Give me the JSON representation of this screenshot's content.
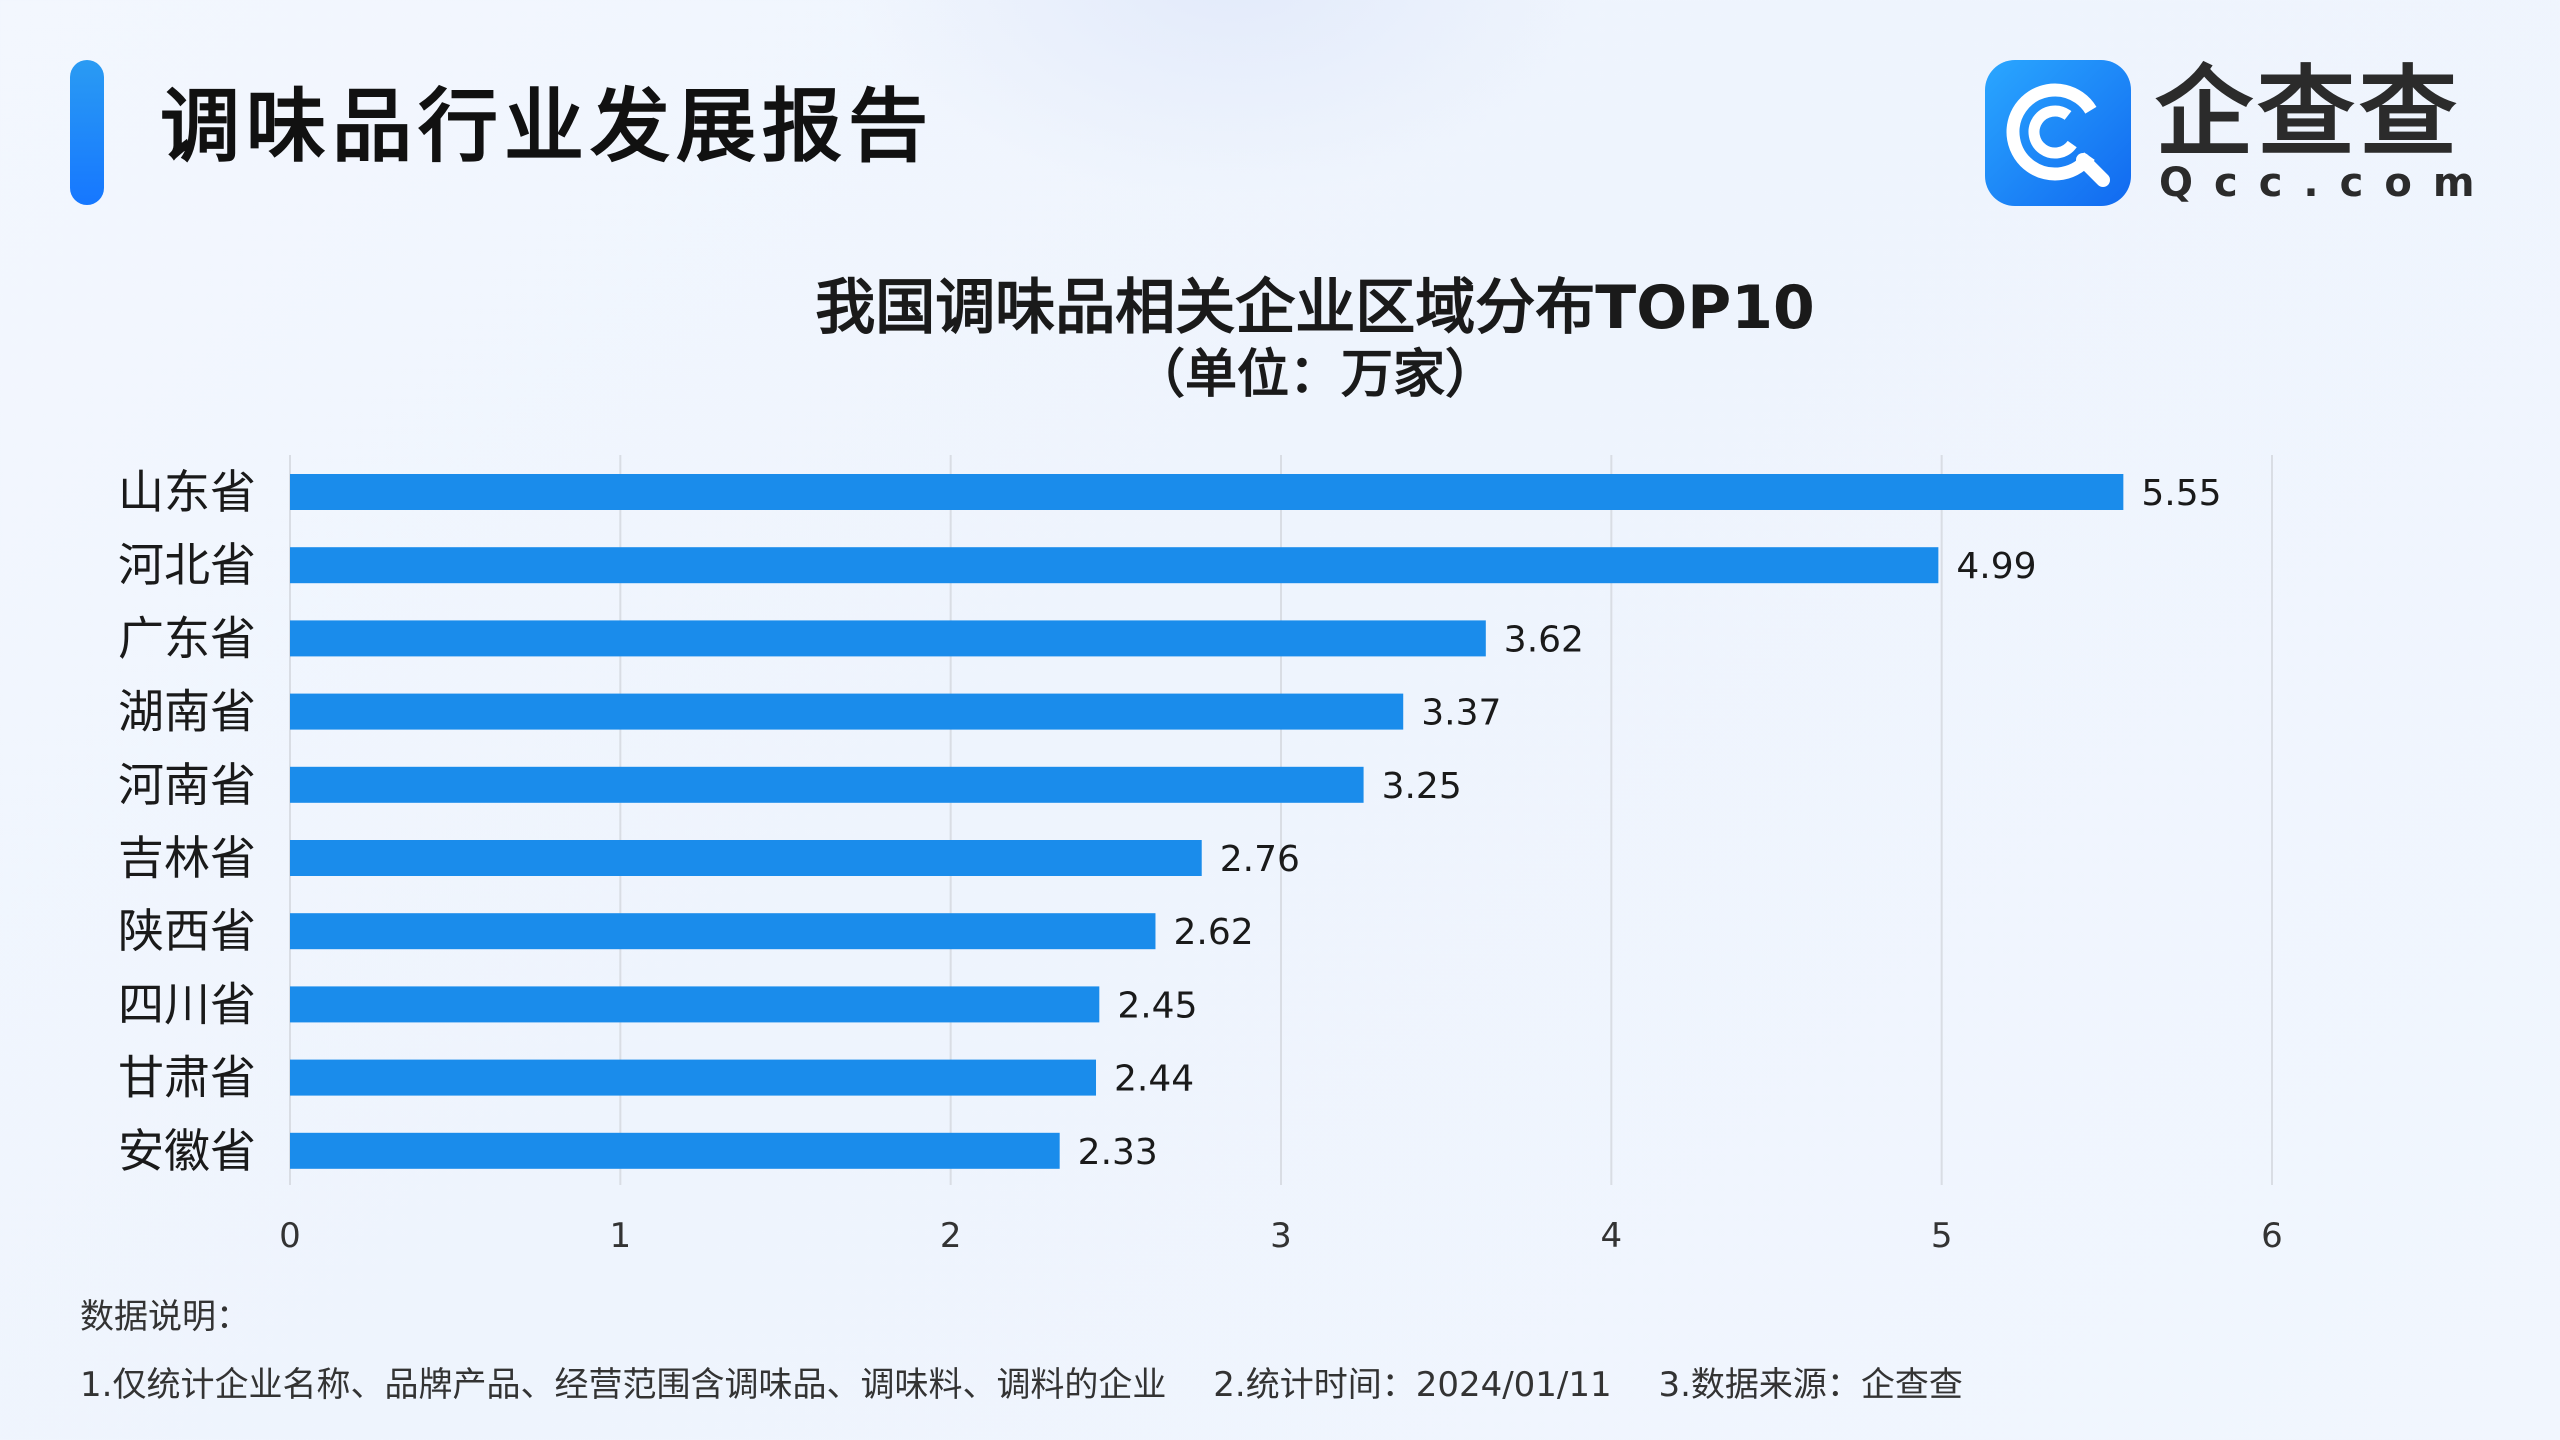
{
  "header": {
    "report_title": "调味品行业发展报告",
    "logo_name": "企查查",
    "logo_domain": "Qcc.com"
  },
  "colors": {
    "bar": "#1a8ceb",
    "grid": "#d9dde4",
    "accent": "#1a8ceb"
  },
  "chart_data": {
    "type": "bar",
    "orientation": "horizontal",
    "title": "我国调味品相关企业区域分布TOP10",
    "subtitle": "（单位：万家）",
    "categories": [
      "山东省",
      "河北省",
      "广东省",
      "湖南省",
      "河南省",
      "吉林省",
      "陕西省",
      "四川省",
      "甘肃省",
      "安徽省"
    ],
    "values": [
      5.55,
      4.99,
      3.62,
      3.37,
      3.25,
      2.76,
      2.62,
      2.45,
      2.44,
      2.33
    ],
    "value_labels": [
      "5.55",
      "4.99",
      "3.62",
      "3.37",
      "3.25",
      "2.76",
      "2.62",
      "2.45",
      "2.44",
      "2.33"
    ],
    "x_ticks": [
      "0",
      "1",
      "2",
      "3",
      "4",
      "5",
      "6"
    ],
    "xlim": [
      0,
      6
    ],
    "grid": "vertical"
  },
  "notes": {
    "heading": "数据说明：",
    "items": [
      "1.仅统计企业名称、品牌产品、经营范围含调味品、调味料、调料的企业",
      "2.统计时间：2024/01/11",
      "3.数据来源：企查查"
    ]
  }
}
